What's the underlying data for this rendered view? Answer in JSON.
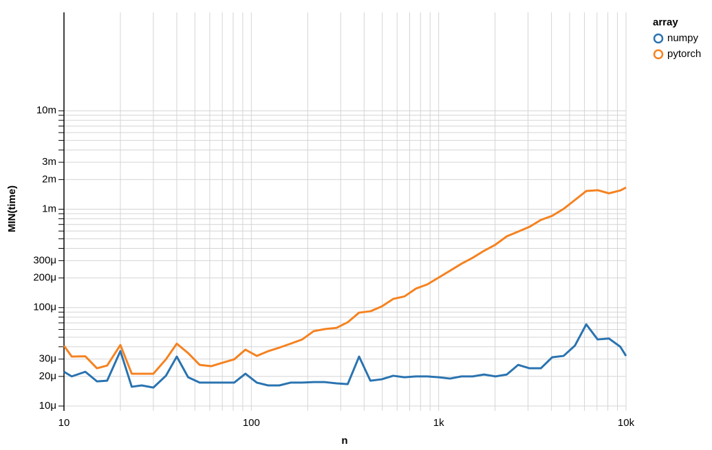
{
  "chart_data": {
    "type": "line",
    "x_label": "n",
    "y_label": "MIN(time)",
    "legend_title": "array",
    "legend": "top-right",
    "xscale": "log",
    "yscale": "log",
    "grid": true,
    "xlim": [
      10,
      10000
    ],
    "ylim": [
      1e-05,
      0.1
    ],
    "xticks": [
      10,
      100,
      {
        "value": 1000,
        "label": "1k"
      },
      {
        "value": 10000,
        "label": "10k"
      }
    ],
    "x_minor_ticks": [
      20,
      30,
      40,
      50,
      60,
      70,
      80,
      90,
      200,
      300,
      400,
      500,
      600,
      700,
      800,
      900,
      2000,
      3000,
      4000,
      5000,
      6000,
      7000,
      8000,
      9000
    ],
    "yticks": [
      {
        "value": 1e-05,
        "label": "10μ"
      },
      {
        "value": 2e-05,
        "label": "20μ"
      },
      {
        "value": 3e-05,
        "label": "30μ"
      },
      {
        "value": 0.0001,
        "label": "100μ"
      },
      {
        "value": 0.0002,
        "label": "200μ"
      },
      {
        "value": 0.0003,
        "label": "300μ"
      },
      {
        "value": 0.001,
        "label": "1m"
      },
      {
        "value": 0.002,
        "label": "2m"
      },
      {
        "value": 0.003,
        "label": "3m"
      },
      {
        "value": 0.01,
        "label": "10m"
      }
    ],
    "y_minor_ticks": [
      4e-05,
      5e-05,
      6e-05,
      7e-05,
      8e-05,
      9e-05,
      0.0004,
      0.0005,
      0.0006,
      0.0007,
      0.0008,
      0.0009,
      0.004,
      0.005,
      0.006,
      0.007,
      0.008,
      0.009
    ],
    "x": [
      10,
      11,
      13,
      15,
      17,
      20,
      23,
      26,
      30,
      35,
      40,
      46,
      53,
      61,
      70,
      81,
      93,
      107,
      123,
      141,
      162,
      187,
      215,
      247,
      285,
      327,
      376,
      432,
      497,
      572,
      657,
      756,
      869,
      1000,
      1150,
      1322,
      1520,
      1747,
      2009,
      2310,
      2656,
      3053,
      3511,
      4037,
      4641,
      5336,
      6135,
      7054,
      8111,
      9326,
      10000
    ],
    "series": [
      {
        "name": "numpy",
        "color": "#2a73b0",
        "values": [
          2.23e-05,
          2e-05,
          2.23e-05,
          1.78e-05,
          1.81e-05,
          3.62e-05,
          1.57e-05,
          1.62e-05,
          1.54e-05,
          2.03e-05,
          3.18e-05,
          1.96e-05,
          1.73e-05,
          1.73e-05,
          1.73e-05,
          1.73e-05,
          2.13e-05,
          1.73e-05,
          1.62e-05,
          1.62e-05,
          1.73e-05,
          1.73e-05,
          1.75e-05,
          1.75e-05,
          1.7e-05,
          1.67e-05,
          3.18e-05,
          1.81e-05,
          1.87e-05,
          2.03e-05,
          1.96e-05,
          2e-05,
          2e-05,
          1.96e-05,
          1.9e-05,
          2e-05,
          2e-05,
          2.09e-05,
          2e-05,
          2.09e-05,
          2.62e-05,
          2.42e-05,
          2.42e-05,
          3.13e-05,
          3.23e-05,
          4.11e-05,
          6.76e-05,
          4.75e-05,
          4.85e-05,
          4e-05,
          3.23e-05
        ]
      },
      {
        "name": "pytorch",
        "color": "#f58220",
        "values": [
          4.1e-05,
          3.18e-05,
          3.2e-05,
          2.42e-05,
          2.58e-05,
          4.17e-05,
          2.13e-05,
          2.13e-05,
          2.13e-05,
          2.98e-05,
          4.3e-05,
          3.45e-05,
          2.62e-05,
          2.54e-05,
          2.75e-05,
          2.98e-05,
          3.74e-05,
          3.23e-05,
          3.61e-05,
          3.92e-05,
          4.3e-05,
          4.75e-05,
          5.76e-05,
          6.05e-05,
          6.23e-05,
          7.1e-05,
          8.89e-05,
          9.18e-05,
          0.0001028,
          0.0001226,
          0.00013,
          0.000156,
          0.000172,
          0.000202,
          0.000237,
          0.000279,
          0.000321,
          0.000378,
          0.000436,
          0.00053,
          0.000592,
          0.000662,
          0.000778,
          0.000857,
          0.001007,
          0.00124,
          0.00153,
          0.00156,
          0.00145,
          0.00155,
          0.00166
        ]
      }
    ]
  }
}
